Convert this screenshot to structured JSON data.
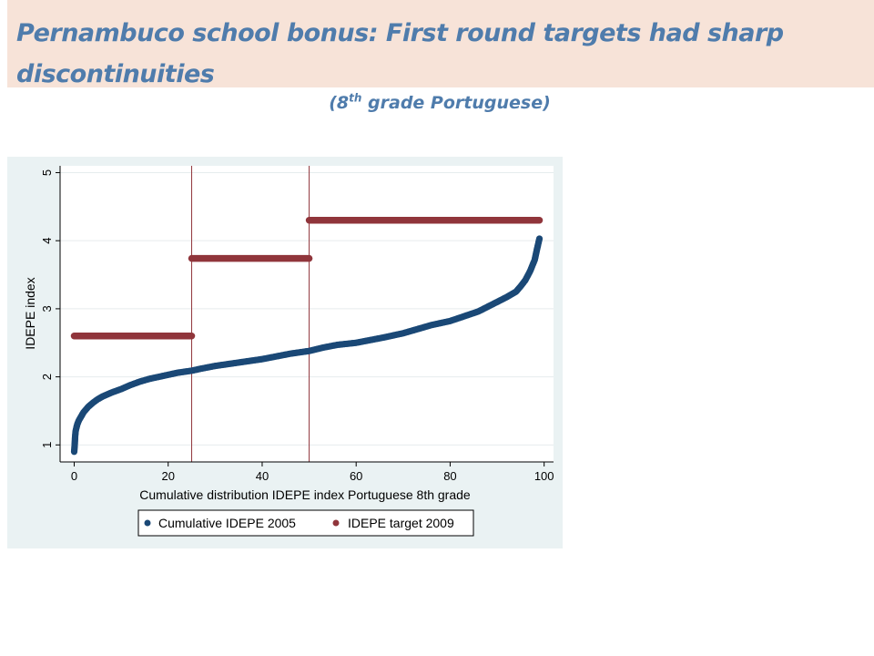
{
  "slide": {
    "title": "Pernambuco school bonus:  First round targets had sharp discontinuities",
    "subtitle_prefix": "(8",
    "subtitle_sup": "th",
    "subtitle_suffix": " grade Portuguese)"
  },
  "colors": {
    "banner_bg": "#f7e3d8",
    "title_text": "#4f7cac",
    "plot_region_bg": "#eaf2f3",
    "series_cumulative": "#1a4876",
    "series_target": "#90353b",
    "cutoff_line": "#90353b"
  },
  "chart_data": {
    "type": "scatter",
    "xlabel": "Cumulative distribution IDEPE index Portuguese 8th grade",
    "ylabel": "IDEPE index",
    "xlim": [
      -3,
      102
    ],
    "ylim": [
      0.75,
      5.1
    ],
    "xticks": [
      0,
      20,
      40,
      60,
      80,
      100
    ],
    "yticks": [
      1,
      2,
      3,
      4,
      5
    ],
    "grid": true,
    "legend_position": "bottom",
    "vertical_lines_x": [
      25,
      50
    ],
    "series": [
      {
        "name": "Cumulative IDEPE 2005",
        "x": [
          0,
          0.1,
          0.2,
          0.3,
          0.5,
          0.7,
          1,
          1.5,
          2,
          3,
          4,
          5,
          6,
          7,
          8,
          10,
          12,
          14,
          16,
          18,
          20,
          22,
          25,
          27,
          30,
          33,
          36,
          40,
          43,
          46,
          50,
          53,
          56,
          60,
          63,
          66,
          70,
          73,
          76,
          80,
          83,
          86,
          88,
          90,
          92,
          94,
          95,
          96,
          97,
          98,
          98.5,
          99
        ],
        "y": [
          0.9,
          0.99,
          1.12,
          1.2,
          1.26,
          1.31,
          1.36,
          1.42,
          1.48,
          1.56,
          1.62,
          1.67,
          1.71,
          1.74,
          1.77,
          1.82,
          1.88,
          1.93,
          1.97,
          2.0,
          2.03,
          2.06,
          2.09,
          2.12,
          2.16,
          2.19,
          2.22,
          2.26,
          2.3,
          2.34,
          2.38,
          2.43,
          2.47,
          2.5,
          2.54,
          2.58,
          2.64,
          2.7,
          2.76,
          2.82,
          2.89,
          2.96,
          3.03,
          3.1,
          3.17,
          3.25,
          3.33,
          3.42,
          3.55,
          3.72,
          3.88,
          4.03
        ]
      },
      {
        "name": "IDEPE target 2009",
        "segments": [
          {
            "x": [
              0,
              25
            ],
            "y": 2.6
          },
          {
            "x": [
              25,
              50
            ],
            "y": 3.74
          },
          {
            "x": [
              50,
              99
            ],
            "y": 4.3
          }
        ]
      }
    ]
  }
}
